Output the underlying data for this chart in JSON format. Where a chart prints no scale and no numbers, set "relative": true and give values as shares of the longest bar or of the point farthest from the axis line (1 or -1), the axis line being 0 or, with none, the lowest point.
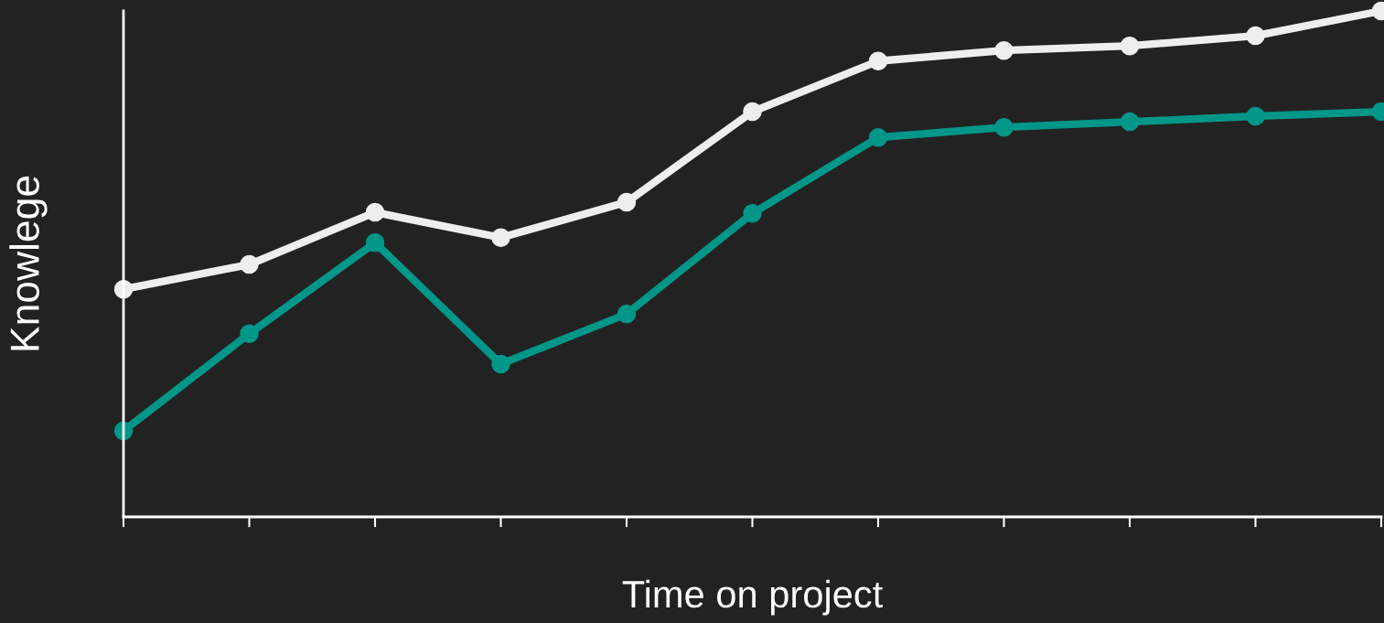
{
  "chart_data": {
    "type": "line",
    "relative": true,
    "xlabel": "Time on project",
    "ylabel": "Knowlege",
    "categories": [
      null,
      null,
      null,
      null,
      null,
      null,
      null,
      null,
      null,
      null,
      null
    ],
    "series": [
      {
        "color": "#eeeeee",
        "values": [
          0.45,
          0.499,
          0.602,
          0.552,
          0.622,
          0.801,
          0.901,
          0.922,
          0.931,
          0.951,
          1.0
        ]
      },
      {
        "color": "#009688",
        "values": [
          0.17,
          0.362,
          0.542,
          0.302,
          0.401,
          0.6,
          0.75,
          0.77,
          0.781,
          0.792,
          0.801
        ]
      }
    ],
    "marker": "circle",
    "line_style": "solid",
    "grid": false
  }
}
